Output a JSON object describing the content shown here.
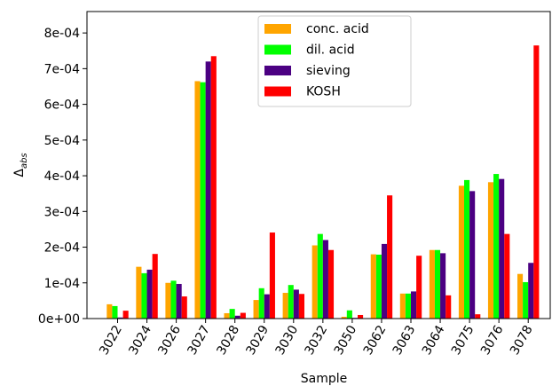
{
  "chart_data": {
    "type": "bar",
    "title": "",
    "xlabel": "Sample",
    "ylabel_main": "Δ",
    "ylabel_sub": "abs",
    "ylim": [
      0,
      0.00086
    ],
    "yticks": [
      0,
      0.0001,
      0.0002,
      0.0003,
      0.0004,
      0.0005,
      0.0006,
      0.0007,
      0.0008
    ],
    "ytick_labels": [
      "0e+00",
      "1e-04",
      "2e-04",
      "3e-04",
      "4e-04",
      "5e-04",
      "6e-04",
      "7e-04",
      "8e-04"
    ],
    "categories": [
      "3022",
      "3024",
      "3026",
      "3027",
      "3028",
      "3029",
      "3030",
      "3032",
      "3050",
      "3062",
      "3063",
      "3064",
      "3075",
      "3076",
      "3078"
    ],
    "legend_position": "upper-center",
    "grid": false,
    "series": [
      {
        "name": "conc. acid",
        "color": "#ffa500",
        "values": [
          4e-05,
          0.000145,
          0.0001,
          0.000665,
          1.5e-05,
          5.2e-05,
          7.2e-05,
          0.000205,
          5e-06,
          0.00018,
          7e-05,
          0.000192,
          0.000372,
          0.000382,
          0.000125
        ]
      },
      {
        "name": "dil. acid",
        "color": "#00ff00",
        "values": [
          3.5e-05,
          0.000127,
          0.000106,
          0.000662,
          2.7e-05,
          8.5e-05,
          9.4e-05,
          0.000237,
          2.3e-05,
          0.000179,
          7e-05,
          0.000192,
          0.000388,
          0.000405,
          0.000102
        ]
      },
      {
        "name": "sieving",
        "color": "#4b0082",
        "values": [
          3e-06,
          0.000137,
          9.7e-05,
          0.00072,
          8e-06,
          6.8e-05,
          8.1e-05,
          0.00022,
          2e-06,
          0.000209,
          7.6e-05,
          0.000183,
          0.000357,
          0.000391,
          0.000156
        ]
      },
      {
        "name": "KOSH",
        "color": "#ff0000",
        "values": [
          2.2e-05,
          0.000181,
          6.2e-05,
          0.000735,
          1.6e-05,
          0.000241,
          6.9e-05,
          0.000192,
          1e-05,
          0.000345,
          0.000176,
          6.5e-05,
          1.2e-05,
          0.000237,
          0.000765
        ]
      }
    ]
  }
}
